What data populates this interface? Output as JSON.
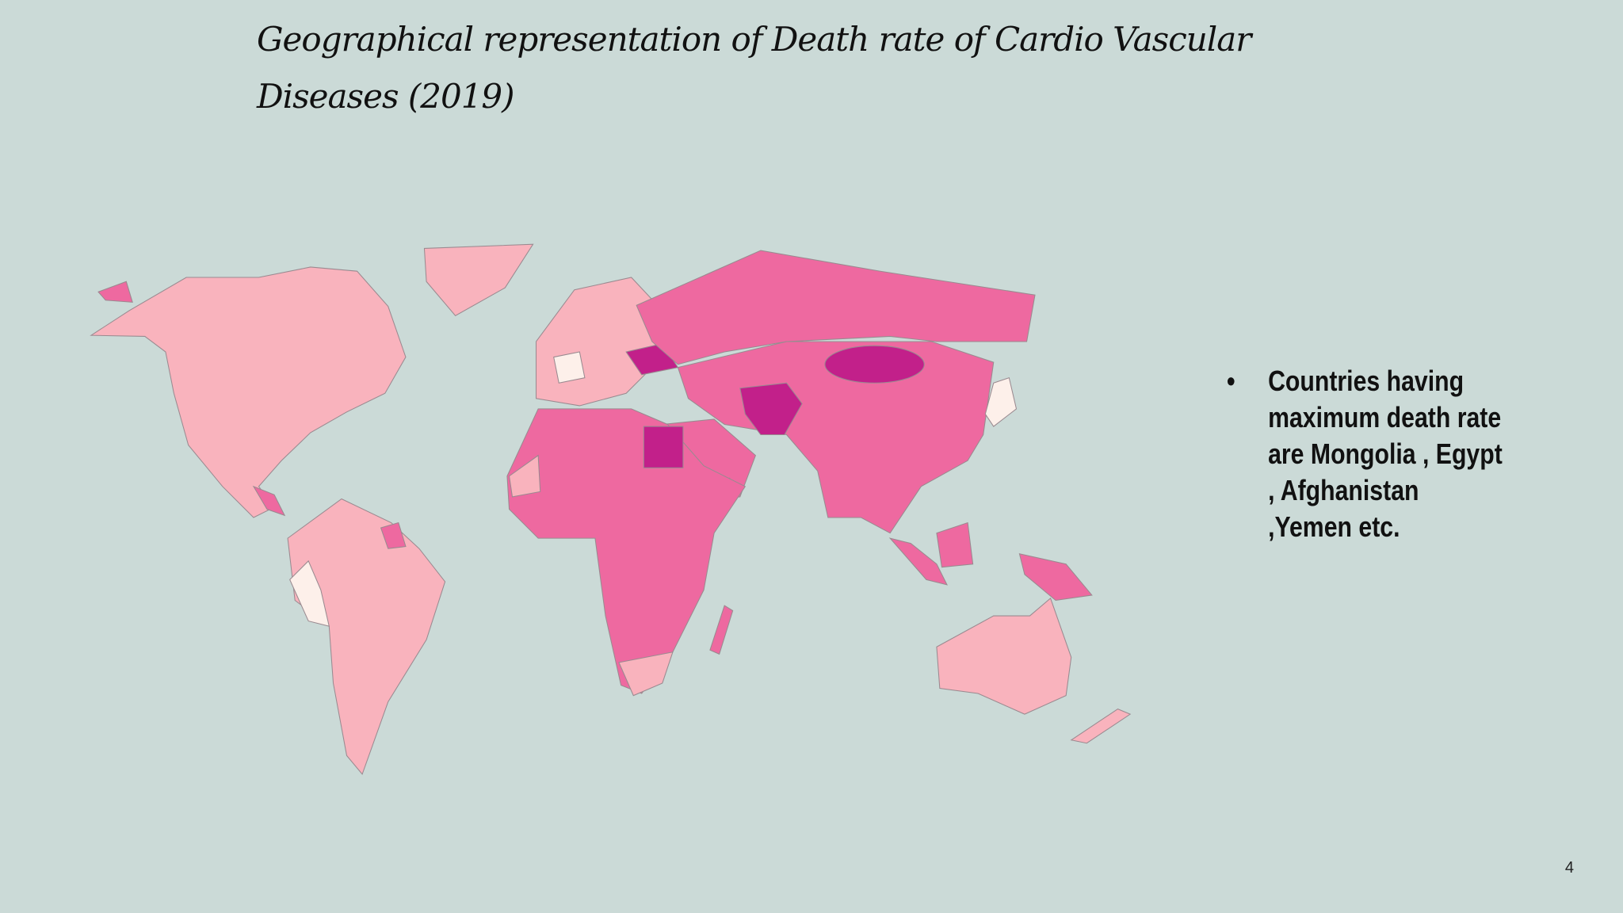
{
  "header": {
    "title": "Geographical representation of Death rate of Cardio Vascular Diseases (2019)"
  },
  "bullets": [
    "Countries having maximum death rate are Mongolia , Egypt , Afghanistan ,Yemen etc."
  ],
  "page_number": "4"
}
